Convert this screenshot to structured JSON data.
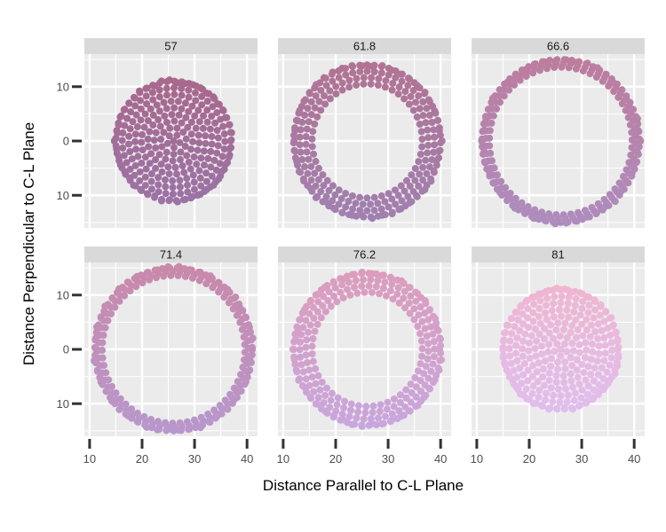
{
  "chart_data": {
    "type": "scatter",
    "facet_by": "panel",
    "xlabel": "Distance Parallel to C-L Plane",
    "ylabel": "Distance Perpendicular to C-L Plane",
    "xlim": [
      9,
      42
    ],
    "ylim": [
      -16,
      16
    ],
    "x_ticks": [
      10,
      20,
      30,
      40
    ],
    "y_ticks": [
      10,
      0,
      -10
    ],
    "y_tick_labels": [
      "10",
      "0",
      "10"
    ],
    "grid": true,
    "legend": "none",
    "center": [
      26,
      0
    ],
    "panels": [
      {
        "label": "57",
        "outer_radius": 11,
        "inner_radius": 0,
        "color_top": "#a9688c",
        "color_bottom": "#9b73a6"
      },
      {
        "label": "61.8",
        "outer_radius": 14,
        "inner_radius": 10.5,
        "color_top": "#b17393",
        "color_bottom": "#a180b0"
      },
      {
        "label": "66.6",
        "outer_radius": 15,
        "inner_radius": 13.6,
        "color_top": "#bc7d9f",
        "color_bottom": "#ae8cbd"
      },
      {
        "label": "71.4",
        "outer_radius": 15,
        "inner_radius": 13.6,
        "color_top": "#c889ab",
        "color_bottom": "#b897cc"
      },
      {
        "label": "76.2",
        "outer_radius": 14,
        "inner_radius": 10.5,
        "color_top": "#db9dbd",
        "color_bottom": "#c9a6dd"
      },
      {
        "label": "81",
        "outer_radius": 11,
        "inner_radius": 0,
        "color_top": "#efb6d2",
        "color_bottom": "#e0bdee"
      }
    ]
  }
}
